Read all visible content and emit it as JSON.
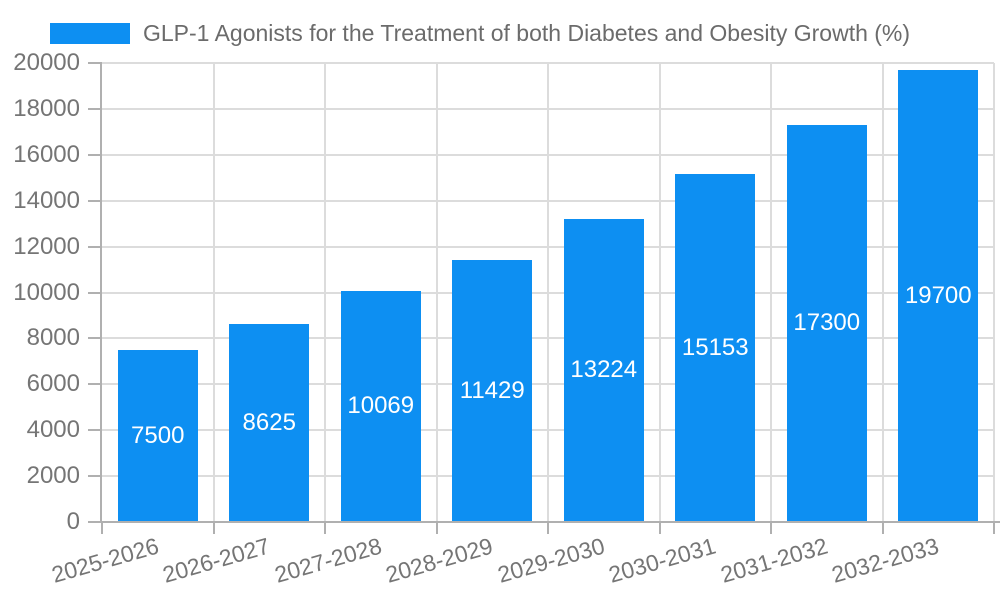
{
  "legend": {
    "swatch_color": "#0d8ff2"
  },
  "chart_data": {
    "type": "bar",
    "title": "GLP-1 Agonists for the Treatment of both Diabetes and Obesity Growth (%)",
    "categories": [
      "2025-2026",
      "2026-2027",
      "2027-2028",
      "2028-2029",
      "2029-2030",
      "2030-2031",
      "2031-2032",
      "2032-2033"
    ],
    "values": [
      7500,
      8625,
      10069,
      11429,
      13224,
      15153,
      17300,
      19700
    ],
    "xlabel": "",
    "ylabel": "",
    "ylim": [
      0,
      20000
    ],
    "ytick_step": 2000,
    "ytick_labels": [
      "0",
      "2000",
      "4000",
      "6000",
      "8000",
      "10000",
      "12000",
      "14000",
      "16000",
      "18000",
      "20000"
    ],
    "grid": true,
    "legend_position": "top-left",
    "bar_color": "#0d8ff2",
    "value_label_color": "#ffffff",
    "title_color": "#6b6b6b",
    "axis_label_color": "#757575",
    "grid_color": "#dcdcdc",
    "axis_line_color": "#b0b0b0"
  }
}
